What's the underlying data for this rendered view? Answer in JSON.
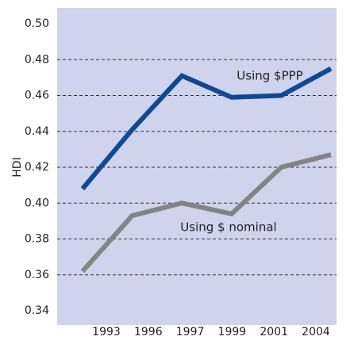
{
  "chart_data": {
    "type": "line",
    "ylabel": "HDI",
    "categories": [
      "1993",
      "1996",
      "1997",
      "1999",
      "2001",
      "2004"
    ],
    "series": [
      {
        "name": "Using $PPP",
        "color": "#0b4a97",
        "values": [
          0.408,
          0.441,
          0.471,
          0.459,
          0.46,
          0.475
        ]
      },
      {
        "name": "Using $ nominal",
        "color": "#848484",
        "values": [
          0.362,
          0.393,
          0.4,
          0.394,
          0.42,
          0.427
        ]
      }
    ],
    "ylim": [
      0.34,
      0.5
    ],
    "yticks": [
      0.34,
      0.36,
      0.38,
      {
        "value": 0.4,
        "label": "0.40"
      },
      0.42,
      0.44,
      0.46,
      0.48,
      {
        "value": 0.5,
        "label": "0.50"
      }
    ],
    "grid": true,
    "plot_background": "#cfd3ec"
  }
}
